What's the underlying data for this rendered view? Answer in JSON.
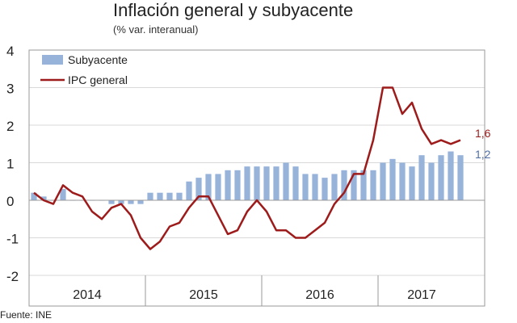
{
  "chart_data": {
    "type": "bar+line",
    "title": "Inflación general y subyacente",
    "subtitle": "(% var. interanual)",
    "source": "Fuente: INE",
    "ylim": [
      -2,
      4
    ],
    "yticks": [
      "4",
      "3",
      "2",
      "1",
      "0",
      "-1",
      "-2"
    ],
    "ytick_values": [
      4,
      3,
      2,
      1,
      0,
      -1,
      -2
    ],
    "year_labels": [
      "2014",
      "2015",
      "2016",
      "2017"
    ],
    "year_start_index": [
      0,
      12,
      24,
      36
    ],
    "n_months": 45,
    "legend": {
      "bar": "Subyacente",
      "line": "IPC general",
      "position": "top-left"
    },
    "series": [
      {
        "name": "Subyacente",
        "kind": "bar",
        "color": "#98b3d9",
        "values": [
          0.2,
          0.1,
          0.0,
          0.3,
          0.0,
          0.0,
          0.0,
          0.0,
          -0.1,
          -0.1,
          -0.1,
          -0.1,
          0.2,
          0.2,
          0.2,
          0.2,
          0.5,
          0.6,
          0.7,
          0.7,
          0.8,
          0.8,
          0.9,
          0.9,
          0.9,
          0.9,
          1.0,
          0.9,
          0.7,
          0.7,
          0.6,
          0.7,
          0.8,
          0.8,
          0.8,
          0.8,
          1.0,
          1.1,
          1.0,
          0.9,
          1.2,
          1.0,
          1.2,
          1.3,
          1.2
        ]
      },
      {
        "name": "IPC general",
        "kind": "line",
        "color": "#9e1b1b",
        "values": [
          0.2,
          0.0,
          -0.1,
          0.4,
          0.2,
          0.1,
          -0.3,
          -0.5,
          -0.2,
          -0.1,
          -0.4,
          -1.0,
          -1.3,
          -1.1,
          -0.7,
          -0.6,
          -0.2,
          0.1,
          0.1,
          -0.4,
          -0.9,
          -0.8,
          -0.3,
          0.0,
          -0.3,
          -0.8,
          -0.8,
          -1.0,
          -1.0,
          -0.8,
          -0.6,
          -0.1,
          0.2,
          0.7,
          0.7,
          1.6,
          3.0,
          3.0,
          2.3,
          2.6,
          1.9,
          1.5,
          1.6,
          1.5,
          1.6
        ]
      }
    ],
    "end_labels": {
      "line": "1,6",
      "bar": "1,2"
    }
  }
}
